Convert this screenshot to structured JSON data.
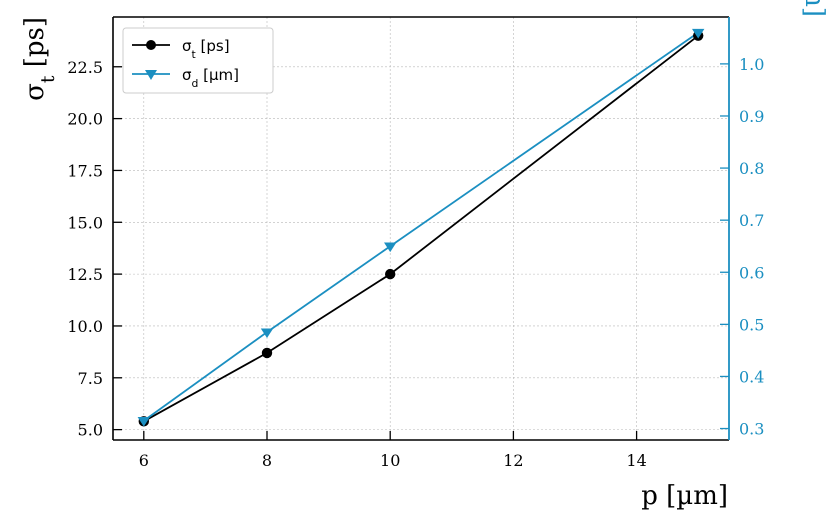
{
  "chart_data": {
    "type": "line",
    "x": [
      6,
      8,
      10,
      15
    ],
    "xlabel": "p [µm]",
    "xlim": [
      5.5,
      15.5
    ],
    "xticks": [
      6,
      8,
      10,
      12,
      14
    ],
    "grid": true,
    "legend_position": "top-left",
    "series": [
      {
        "name": "σt [ps]",
        "axis": "left",
        "color": "#000000",
        "marker": "circle",
        "values": [
          5.4,
          8.7,
          12.5,
          24.0
        ]
      },
      {
        "name": "σd [µm]",
        "axis": "right",
        "color": "#1b8fc1",
        "marker": "triangle-down",
        "values": [
          0.315,
          0.485,
          0.65,
          1.06
        ]
      }
    ],
    "left_axis": {
      "label": "σt [ps]",
      "ylim": [
        4.5,
        24.9
      ],
      "ticks": [
        5.0,
        7.5,
        10.0,
        12.5,
        15.0,
        17.5,
        20.0,
        22.5
      ],
      "tick_labels": [
        "5.0",
        "7.5",
        "10.0",
        "12.5",
        "15.0",
        "17.5",
        "20.0",
        "22.5"
      ]
    },
    "right_axis": {
      "label": "σd [µm]",
      "ylim": [
        0.278,
        1.09
      ],
      "ticks": [
        0.3,
        0.4,
        0.5,
        0.6,
        0.7,
        0.8,
        0.9,
        1.0
      ],
      "tick_labels": [
        "0.3",
        "0.4",
        "0.5",
        "0.6",
        "0.7",
        "0.8",
        "0.9",
        "1.0"
      ]
    }
  }
}
